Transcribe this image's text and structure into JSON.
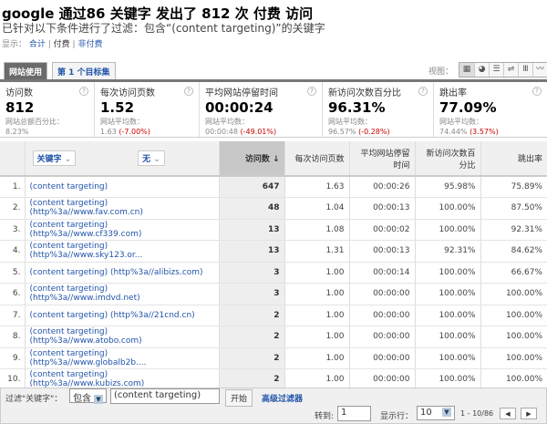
{
  "header": {
    "title": "google 通过86 关键字 发出了 812 次 付费 访问",
    "subtitle": "已针对以下条件进行了过滤：包含“(content targeting)”的关键字",
    "show_label": "显示：",
    "show_options": [
      "合计",
      "付费",
      "非付费"
    ]
  },
  "tabs": [
    "网站使用",
    "第 1 个目标集"
  ],
  "view": {
    "label": "视图：",
    "icons": [
      "table-icon",
      "pie-icon",
      "performance-icon",
      "comparison-icon",
      "pivot-icon",
      "trend-icon"
    ]
  },
  "metrics": [
    {
      "label": "访问数",
      "value": "812",
      "sub_label": "网站总额百分比：",
      "sub_value": "8.23%",
      "delta": ""
    },
    {
      "label": "每次访问页数",
      "value": "1.52",
      "sub_label": "网站平均数：",
      "sub_value": "1.63",
      "delta": "(-7.00%)"
    },
    {
      "label": "平均网站停留时间",
      "value": "00:00:24",
      "sub_label": "网站平均数：",
      "sub_value": "00:00:48",
      "delta": "(-49.01%)"
    },
    {
      "label": "新访问次数百分比",
      "value": "96.31%",
      "sub_label": "网站平均数：",
      "sub_value": "96.57%",
      "delta": "(-0.28%)"
    },
    {
      "label": "跳出率",
      "value": "77.09%",
      "sub_label": "网站平均数：",
      "sub_value": "74.44%",
      "delta": "(3.57%)"
    }
  ],
  "table": {
    "dim1": "关键字",
    "dim2": "无",
    "columns": [
      "访问数 ↓",
      "每次访问页数",
      "平均网站停留时间",
      "新访问次数百分比",
      "跳出率"
    ],
    "rows": [
      [
        "1.",
        "(content targeting)",
        "647",
        "1.63",
        "00:00:26",
        "95.98%",
        "75.89%"
      ],
      [
        "2.",
        "(content targeting) (http%3a//www.fav.com.cn)",
        "48",
        "1.04",
        "00:00:13",
        "100.00%",
        "87.50%"
      ],
      [
        "3.",
        "(content targeting) (http%3a//www.cf339.com)",
        "13",
        "1.08",
        "00:00:02",
        "100.00%",
        "92.31%"
      ],
      [
        "4.",
        "(content targeting) (http%3a//www.sky123.or...",
        "13",
        "1.31",
        "00:00:13",
        "92.31%",
        "84.62%"
      ],
      [
        "5.",
        "(content targeting) (http%3a//alibizs.com)",
        "3",
        "1.00",
        "00:00:14",
        "100.00%",
        "66.67%"
      ],
      [
        "6.",
        "(content targeting) (http%3a//www.imdvd.net)",
        "3",
        "1.00",
        "00:00:00",
        "100.00%",
        "100.00%"
      ],
      [
        "7.",
        "(content targeting) (http%3a//21cnd.cn)",
        "2",
        "1.00",
        "00:00:00",
        "100.00%",
        "100.00%"
      ],
      [
        "8.",
        "(content targeting) (http%3a//www.atobo.com)",
        "2",
        "1.00",
        "00:00:00",
        "100.00%",
        "100.00%"
      ],
      [
        "9.",
        "(content targeting) (http%3a//www.globalb2b....",
        "2",
        "1.00",
        "00:00:00",
        "100.00%",
        "100.00%"
      ],
      [
        "10.",
        "(content targeting) (http%3a//www.kubizs.com)",
        "2",
        "1.00",
        "00:00:00",
        "100.00%",
        "100.00%"
      ]
    ]
  },
  "footer": {
    "filter_label": "过滤\"关键字\"：",
    "filter_op": "包含",
    "filter_value": "(content targeting)",
    "go": "开始",
    "advanced": "高级过滤器",
    "goto_label": "转到:",
    "goto_value": "1",
    "rows_label": "显示行：",
    "rows_value": "10",
    "range": "1 - 10/86"
  }
}
